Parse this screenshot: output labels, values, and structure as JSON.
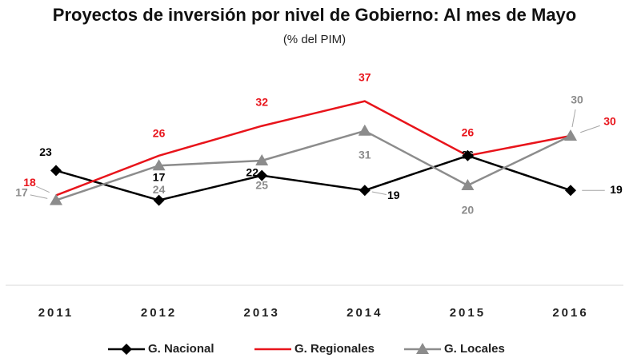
{
  "chart_data": {
    "type": "line",
    "title": "Proyectos de inversión por nivel de Gobierno: Al mes de Mayo",
    "subtitle": "(% del PIM)",
    "categories": [
      "2011",
      "2012",
      "2013",
      "2014",
      "2015",
      "2016"
    ],
    "ylim": [
      0,
      40
    ],
    "series": [
      {
        "name": "G. Nacional",
        "color": "#000000",
        "values": [
          23,
          17,
          22,
          19,
          26,
          19
        ]
      },
      {
        "name": "G. Regionales",
        "color": "#e8141b",
        "values": [
          18,
          26,
          32,
          37,
          26,
          30
        ]
      },
      {
        "name": "G. Locales",
        "color": "#8c8c8c",
        "values": [
          17,
          24,
          25,
          31,
          20,
          30
        ]
      }
    ]
  }
}
